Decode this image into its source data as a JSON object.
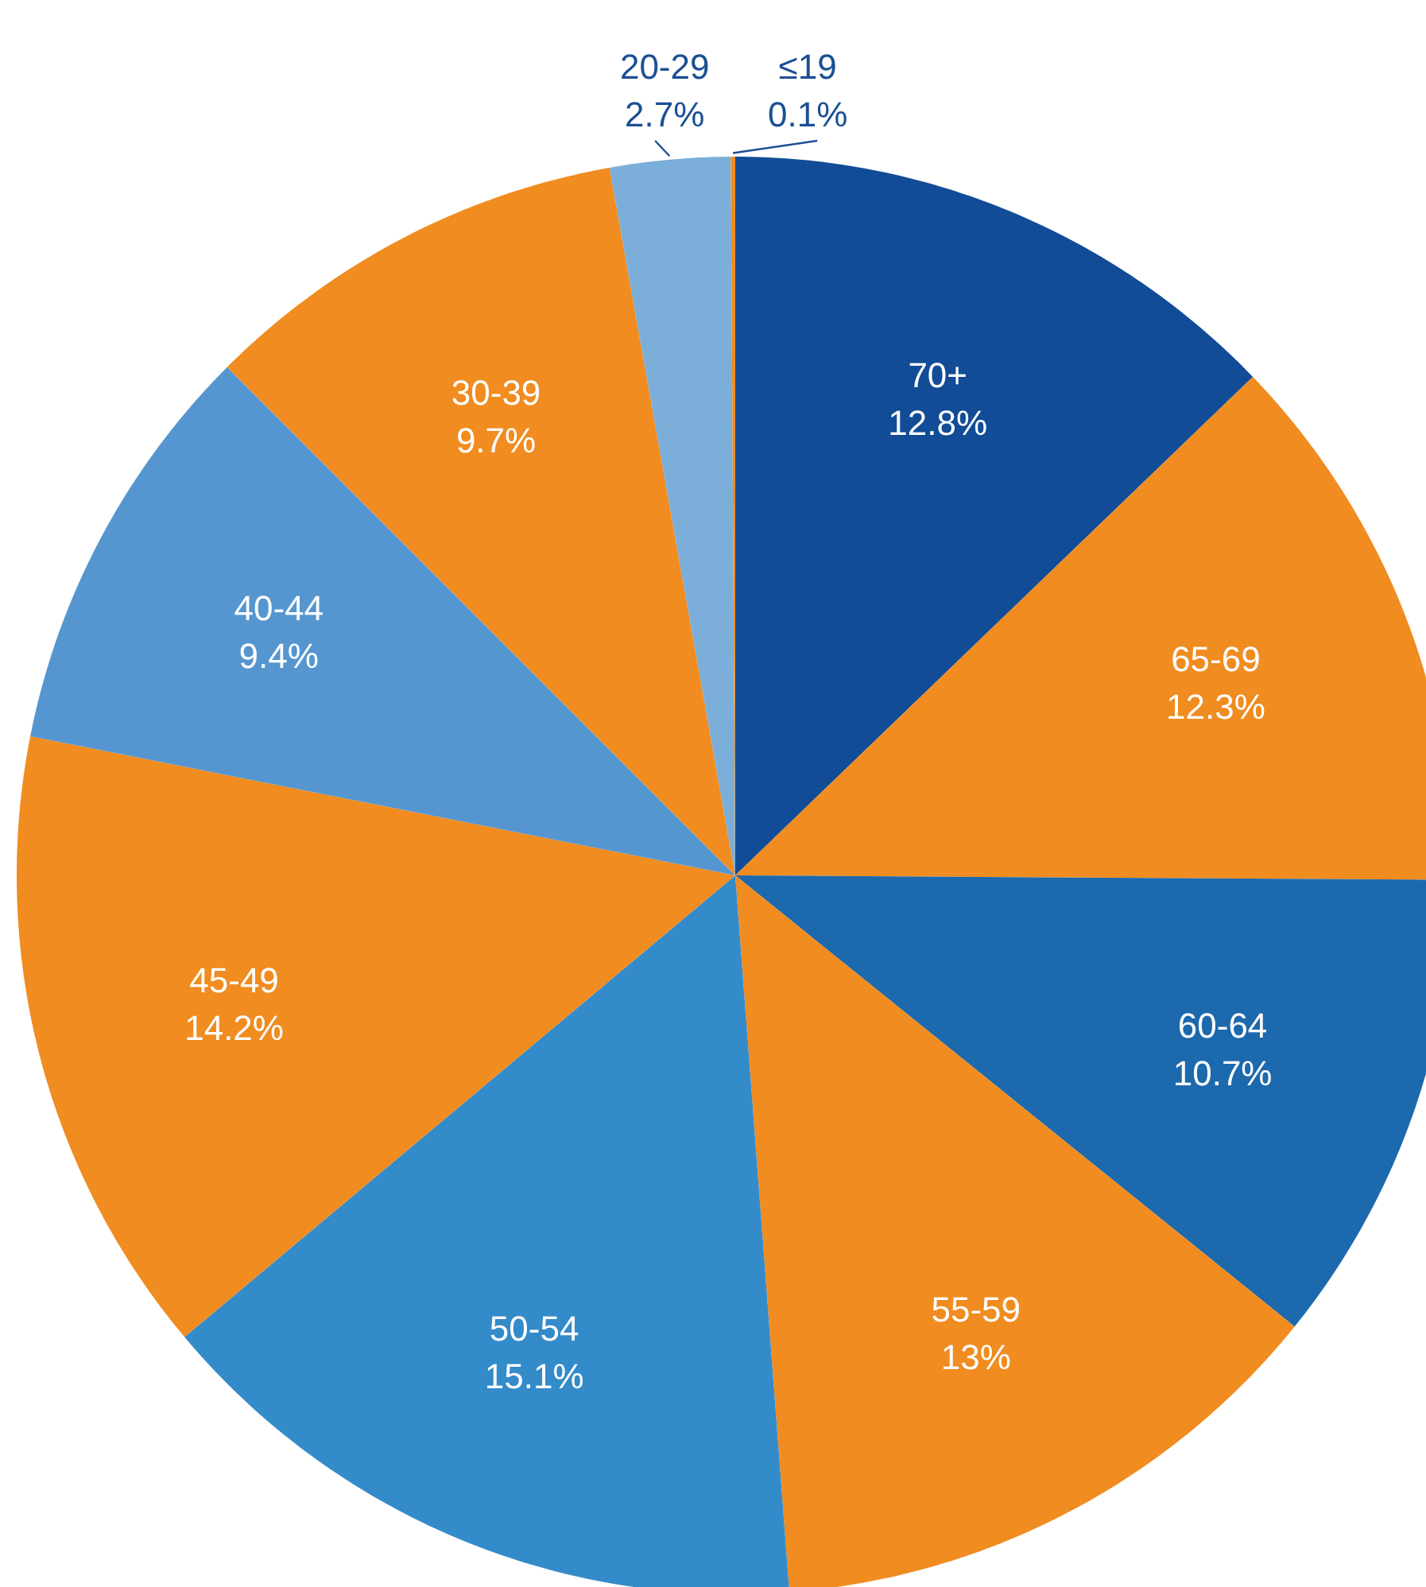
{
  "chart_data": {
    "type": "pie",
    "categories": [
      "70+",
      "65-69",
      "60-64",
      "55-59",
      "50-54",
      "45-49",
      "40-44",
      "30-39",
      "20-29",
      "≤19"
    ],
    "values": [
      12.8,
      12.3,
      10.7,
      13,
      15.1,
      14.2,
      9.4,
      9.7,
      2.7,
      0.1
    ],
    "value_labels": [
      "12.8%",
      "12.3%",
      "10.7%",
      "13%",
      "15.1%",
      "14.2%",
      "9.4%",
      "9.7%",
      "2.7%",
      "0.1%"
    ],
    "colors": [
      "#124c96",
      "#f08c20",
      "#1c69ad",
      "#f08c20",
      "#348bca",
      "#f08c20",
      "#5596d0",
      "#f08c20",
      "#7bafd9",
      "#f08c20"
    ]
  }
}
